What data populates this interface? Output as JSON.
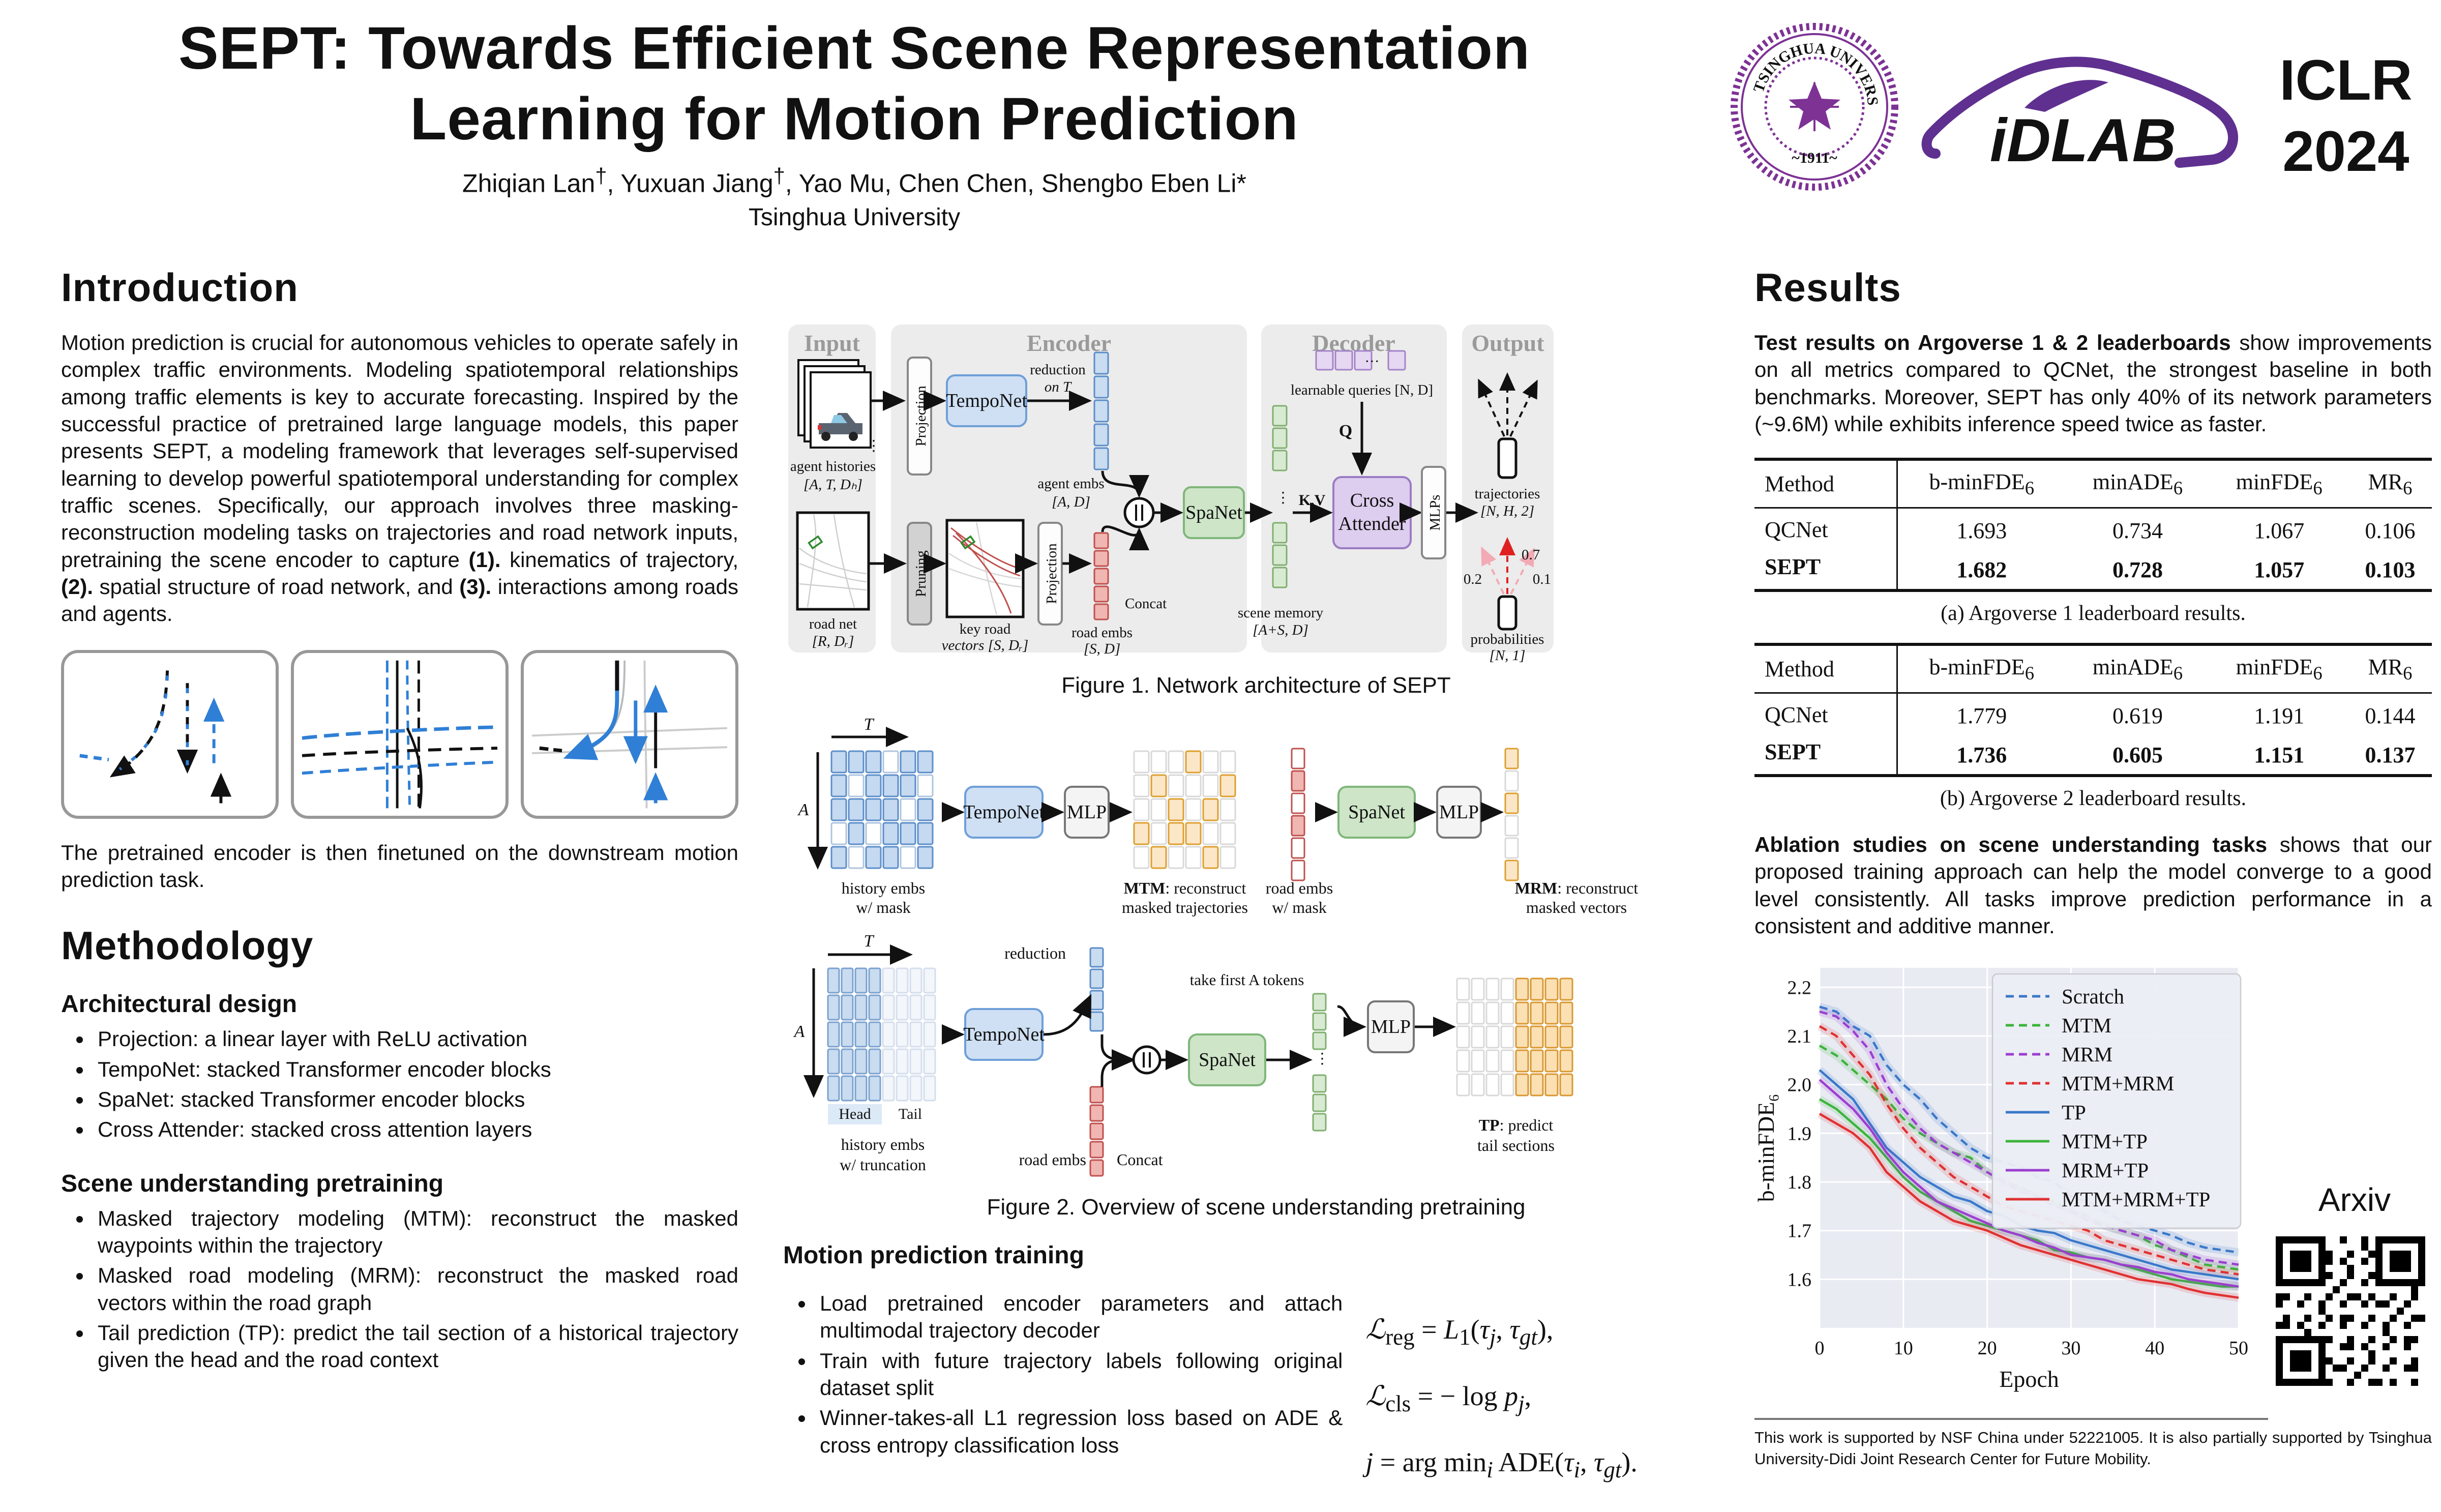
{
  "brand": {
    "tsinghua_purple": "#7d3294",
    "idlab_purple": "#5f3090"
  },
  "header": {
    "title_line1": "SEPT: Towards Efficient Scene Representation",
    "title_line2": "Learning for Motion Prediction",
    "authors_html": "Zhiqian Lan<sup>†</sup>, Yuxuan Jiang<sup>†</sup>, Yao Mu, Chen Chen, Shengbo Eben Li*",
    "affiliation": "Tsinghua University",
    "iclr_line1": "ICLR",
    "iclr_line2": "2024",
    "tsinghua_seal_text": "TSINGHUA UNIVERSITY",
    "tsinghua_seal_year": "~1911~",
    "idlab_text": "iDLAB"
  },
  "introduction": {
    "heading": "Introduction",
    "s1": "Motion prediction is crucial for autonomous vehicles to operate safely in complex traffic environments. Modeling spatiotemporal relationships among traffic elements is key to accurate forecasting. Inspired by the successful practice of pretrained large language models, this paper presents SEPT, a modeling framework that leverages self-supervised learning to develop powerful spatiotemporal understanding for complex traffic scenes. Specifically, our approach involves three masking-reconstruction modeling tasks on trajectories and road network inputs, pretraining the scene encoder to capture ",
    "s2": "(1).",
    "s3": " kinematics of trajectory, ",
    "s4": "(2).",
    "s5": " spatial structure of road network, and ",
    "s6": "(3).",
    "s7": " interactions among roads and agents.",
    "finetune_note": "The pretrained encoder is then finetuned on the downstream motion prediction task."
  },
  "methodology": {
    "heading": "Methodology",
    "arch_heading": "Architectural design",
    "arch_items": [
      "Projection: a linear layer with ReLU activation",
      "TempoNet: stacked Transformer encoder blocks",
      "SpaNet: stacked Transformer encoder blocks",
      "Cross Attender: stacked cross attention layers"
    ],
    "pretrain_heading": "Scene understanding pretraining",
    "pretrain_items": [
      "Masked trajectory modeling (MTM): reconstruct the masked waypoints within the trajectory",
      "Masked road modeling (MRM): reconstruct the masked road vectors within the road graph",
      "Tail prediction (TP): predict the tail section of a historical trajectory given the head and the road context"
    ]
  },
  "figure1": {
    "caption": "Figure 1. Network architecture of SEPT",
    "panels": {
      "input": "Input",
      "encoder": "Encoder",
      "decoder": "Decoder",
      "output": "Output"
    },
    "labels": {
      "agent_histories": "agent histories",
      "agent_histories_dim": "[A, T, Dₕ]",
      "road_net": "road net",
      "road_net_dim": "[R, Dᵣ]",
      "projection": "Projection",
      "pruning": "Pruning",
      "temponet": "TempoNet",
      "reduction1": "reduction",
      "reduction2": "on T",
      "agent_embs": "agent embs",
      "agent_embs_dim": "[A, D]",
      "key_road1": "key road",
      "key_road2": "vectors [S, Dᵣ]",
      "projection2": "Projection",
      "road_embs": "road embs",
      "road_embs_dim": "[S, D]",
      "concat": "Concat",
      "spanet": "SpaNet",
      "scene_memory": "scene memory",
      "scene_memory_dim": "[A+S, D]",
      "learnable_queries": "learnable queries [N, D]",
      "q": "Q",
      "kv": "K,V",
      "cross1": "Cross",
      "cross2": "Attender",
      "mlps": "MLPs",
      "trajectories": "trajectories",
      "trajectories_dim": "[N, H, 2]",
      "p07": "0.7",
      "p02": "0.2",
      "p01": "0.1",
      "probabilities": "probabilities",
      "probabilities_dim": "[N, 1]",
      "dots_v": "⋮",
      "dots_h": "···"
    }
  },
  "figure2": {
    "caption": "Figure 2. Overview of scene understanding pretraining",
    "t": "T",
    "a": "A",
    "history_mask1": "history embs",
    "history_mask2": "w/ mask",
    "temponet": "TempoNet",
    "mlp": "MLP",
    "mtm_bold": "MTM",
    "mtm_rest": ": reconstruct",
    "mtm_line2": "masked trajectories",
    "road_mask1": "road embs",
    "road_mask2": "w/ mask",
    "spanet": "SpaNet",
    "mlp2": "MLP",
    "mrm_bold": "MRM",
    "mrm_rest": ": reconstruct",
    "mrm_line2": "masked vectors",
    "reduction": "reduction",
    "head": "Head",
    "tail": "Tail",
    "history_trunc1": "history embs",
    "history_trunc2": "w/ truncation",
    "road_embs": "road embs",
    "concat": "Concat",
    "take_first": "take first A tokens",
    "temponet2": "TempoNet",
    "spanet2": "SpaNet",
    "mlp3": "MLP",
    "tp_bold": "TP",
    "tp_rest": ": predict",
    "tp_line2": "tail sections",
    "dots_v": "⋮"
  },
  "motion_training": {
    "heading": "Motion prediction training",
    "items": [
      "Load pretrained encoder parameters and attach multimodal trajectory decoder",
      "Train with future trajectory labels following original dataset split",
      "Winner-takes-all L1 regression loss based on ADE & cross entropy classification loss"
    ],
    "f1_html": "<i>ℒ</i><sub>reg</sub> = <i>L</i><sub>1</sub>(<i>τ</i><sub><i>j</i></sub>, <i>τ</i><sub><i>gt</i></sub>),",
    "f2_html": "<i>ℒ</i><sub>cls</sub> = − log <i>p</i><sub><i>j</i></sub>,",
    "f3_html": "<i>j</i> = arg min<sub><i>i</i></sub> ADE(<i>τ</i><sub><i>i</i></sub>, <i>τ</i><sub><i>gt</i></sub>)."
  },
  "results": {
    "heading": "Results",
    "p1_bold": "Test results on Argoverse 1 & 2 leaderboards",
    "p1_rest": " show improvements on all metrics compared to QCNet, the strongest baseline in both benchmarks. Moreover, SEPT has only 40% of its network parameters (~9.6M) while exhibits inference speed twice as faster.",
    "table_headers_html": [
      "Method",
      "b-minFDE<sub>6</sub>",
      "minADE<sub>6</sub>",
      "minFDE<sub>6</sub>",
      "MR<sub>6</sub>"
    ],
    "table_a": {
      "caption": "(a) Argoverse 1 leaderboard results.",
      "rows": [
        {
          "method": "QCNet",
          "values": [
            "1.693",
            "0.734",
            "1.067",
            "0.106"
          ]
        },
        {
          "method": "SEPT",
          "values": [
            "1.682",
            "0.728",
            "1.057",
            "0.103"
          ]
        }
      ]
    },
    "table_b": {
      "caption": "(b) Argoverse 2 leaderboard results.",
      "rows": [
        {
          "method": "QCNet",
          "values": [
            "1.779",
            "0.619",
            "1.191",
            "0.144"
          ]
        },
        {
          "method": "SEPT",
          "values": [
            "1.736",
            "0.605",
            "1.151",
            "0.137"
          ]
        }
      ]
    },
    "p2_bold": "Ablation studies on scene understanding tasks",
    "p2_rest": " shows that our proposed training approach can help the model converge to a good level consistently. All tasks improve prediction performance in a consistent and additive manner.",
    "arxiv_label": "Arxiv",
    "footnote": "This work is supported by NSF China under 52221005. It is also partially supported by Tsinghua University-Didi Joint Research Center for Future Mobility."
  },
  "chart_data": {
    "type": "line",
    "xlabel": "Epoch",
    "ylabel": "b-minFDE₆",
    "xlim": [
      0,
      50
    ],
    "ylim": [
      1.5,
      2.24
    ],
    "xticks": [
      0,
      10,
      20,
      30,
      40,
      50
    ],
    "yticks": [
      1.6,
      1.7,
      1.8,
      1.9,
      2.0,
      2.1,
      2.2
    ],
    "grid": true,
    "legend_position": "upper right",
    "x": [
      0,
      2,
      4,
      6,
      8,
      10,
      12,
      14,
      16,
      18,
      20,
      22,
      24,
      26,
      28,
      30,
      32,
      34,
      36,
      38,
      40,
      42,
      44,
      46,
      48,
      50
    ],
    "series": [
      {
        "name": "Scratch",
        "color": "#3a78c9",
        "dash": true,
        "values": [
          2.16,
          2.15,
          2.12,
          2.1,
          2.04,
          2.0,
          1.97,
          1.93,
          1.9,
          1.87,
          1.85,
          1.84,
          1.83,
          1.81,
          1.8,
          1.77,
          1.76,
          1.74,
          1.72,
          1.71,
          1.7,
          1.69,
          1.675,
          1.665,
          1.66,
          1.655
        ]
      },
      {
        "name": "MTM",
        "color": "#3cb43c",
        "dash": true,
        "values": [
          2.08,
          2.06,
          2.03,
          2.0,
          1.97,
          1.93,
          1.9,
          1.88,
          1.86,
          1.85,
          1.82,
          1.8,
          1.79,
          1.77,
          1.76,
          1.74,
          1.73,
          1.71,
          1.7,
          1.69,
          1.67,
          1.66,
          1.645,
          1.63,
          1.625,
          1.62
        ]
      },
      {
        "name": "MRM",
        "color": "#9c3fd0",
        "dash": true,
        "values": [
          2.15,
          2.14,
          2.11,
          2.07,
          2.0,
          1.95,
          1.91,
          1.88,
          1.86,
          1.84,
          1.82,
          1.8,
          1.78,
          1.77,
          1.75,
          1.74,
          1.72,
          1.71,
          1.7,
          1.69,
          1.68,
          1.66,
          1.65,
          1.64,
          1.635,
          1.63
        ]
      },
      {
        "name": "MTM+MRM",
        "color": "#e03131",
        "dash": true,
        "values": [
          2.12,
          2.1,
          2.06,
          2.02,
          1.96,
          1.91,
          1.87,
          1.84,
          1.81,
          1.79,
          1.77,
          1.75,
          1.74,
          1.73,
          1.72,
          1.71,
          1.7,
          1.68,
          1.67,
          1.66,
          1.65,
          1.64,
          1.63,
          1.62,
          1.615,
          1.61
        ]
      },
      {
        "name": "TP",
        "color": "#3a78c9",
        "dash": false,
        "values": [
          2.03,
          2.0,
          1.97,
          1.92,
          1.87,
          1.84,
          1.81,
          1.79,
          1.77,
          1.76,
          1.74,
          1.73,
          1.71,
          1.7,
          1.695,
          1.68,
          1.67,
          1.66,
          1.65,
          1.64,
          1.63,
          1.62,
          1.615,
          1.61,
          1.605,
          1.6
        ]
      },
      {
        "name": "MTM+TP",
        "color": "#3cb43c",
        "dash": false,
        "values": [
          1.97,
          1.95,
          1.92,
          1.89,
          1.85,
          1.81,
          1.78,
          1.76,
          1.74,
          1.72,
          1.71,
          1.7,
          1.69,
          1.68,
          1.66,
          1.655,
          1.645,
          1.64,
          1.63,
          1.62,
          1.61,
          1.6,
          1.595,
          1.59,
          1.585,
          1.585
        ]
      },
      {
        "name": "MRM+TP",
        "color": "#9c3fd0",
        "dash": false,
        "values": [
          2.01,
          1.98,
          1.95,
          1.91,
          1.86,
          1.82,
          1.79,
          1.76,
          1.745,
          1.73,
          1.715,
          1.7,
          1.69,
          1.675,
          1.665,
          1.65,
          1.645,
          1.64,
          1.63,
          1.625,
          1.615,
          1.61,
          1.6,
          1.595,
          1.59,
          1.585
        ]
      },
      {
        "name": "MTM+MRM+TP",
        "color": "#e03131",
        "dash": false,
        "values": [
          1.94,
          1.92,
          1.9,
          1.87,
          1.82,
          1.79,
          1.76,
          1.74,
          1.72,
          1.71,
          1.7,
          1.685,
          1.67,
          1.66,
          1.65,
          1.64,
          1.63,
          1.62,
          1.61,
          1.6,
          1.595,
          1.59,
          1.58,
          1.572,
          1.567,
          1.562
        ]
      }
    ]
  }
}
